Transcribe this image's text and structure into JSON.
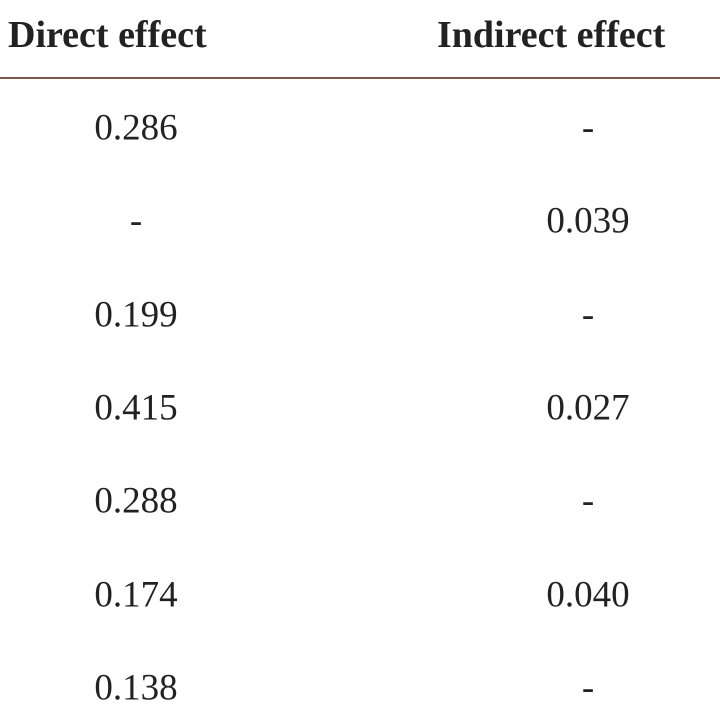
{
  "table": {
    "header": [
      "Direct effect",
      "Indirect effect"
    ],
    "rows": [
      [
        "0.286",
        "-"
      ],
      [
        "-",
        "0.039"
      ],
      [
        "0.199",
        "-"
      ],
      [
        "0.415",
        "0.027"
      ],
      [
        "0.288",
        "-"
      ],
      [
        "0.174",
        "0.040"
      ],
      [
        "0.138",
        "-"
      ]
    ]
  }
}
